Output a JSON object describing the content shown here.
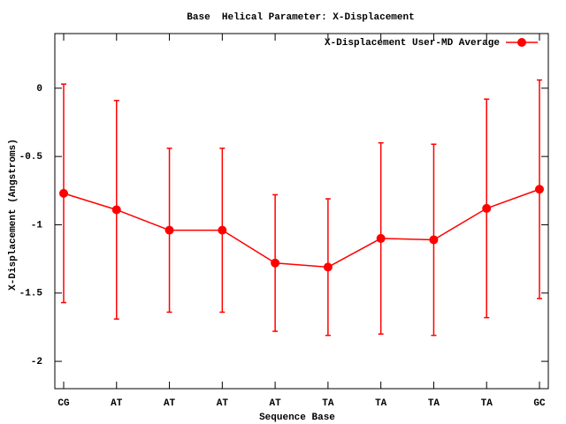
{
  "chart_data": {
    "type": "errorbar-line",
    "title": "Base  Helical Parameter: X-Displacement",
    "x_label": "Sequence Base",
    "y_label": "X-Displacement (Angstroms)",
    "categories": [
      "CG",
      "AT",
      "AT",
      "AT",
      "AT",
      "TA",
      "TA",
      "TA",
      "TA",
      "GC"
    ],
    "series": [
      {
        "name": "X-Displacement User-MD Average",
        "color": "#ff0000",
        "values": [
          -0.77,
          -0.89,
          -1.04,
          -1.04,
          -1.28,
          -1.31,
          -1.1,
          -1.11,
          -0.88,
          -0.74
        ],
        "errors": [
          0.8,
          0.8,
          0.6,
          0.6,
          0.5,
          0.5,
          0.7,
          0.7,
          0.8,
          0.8
        ]
      }
    ],
    "ylim": [
      -2.2,
      0.4
    ],
    "yticks": [
      -2,
      -1.5,
      -1,
      -0.5,
      0
    ],
    "legend": "top-right"
  }
}
